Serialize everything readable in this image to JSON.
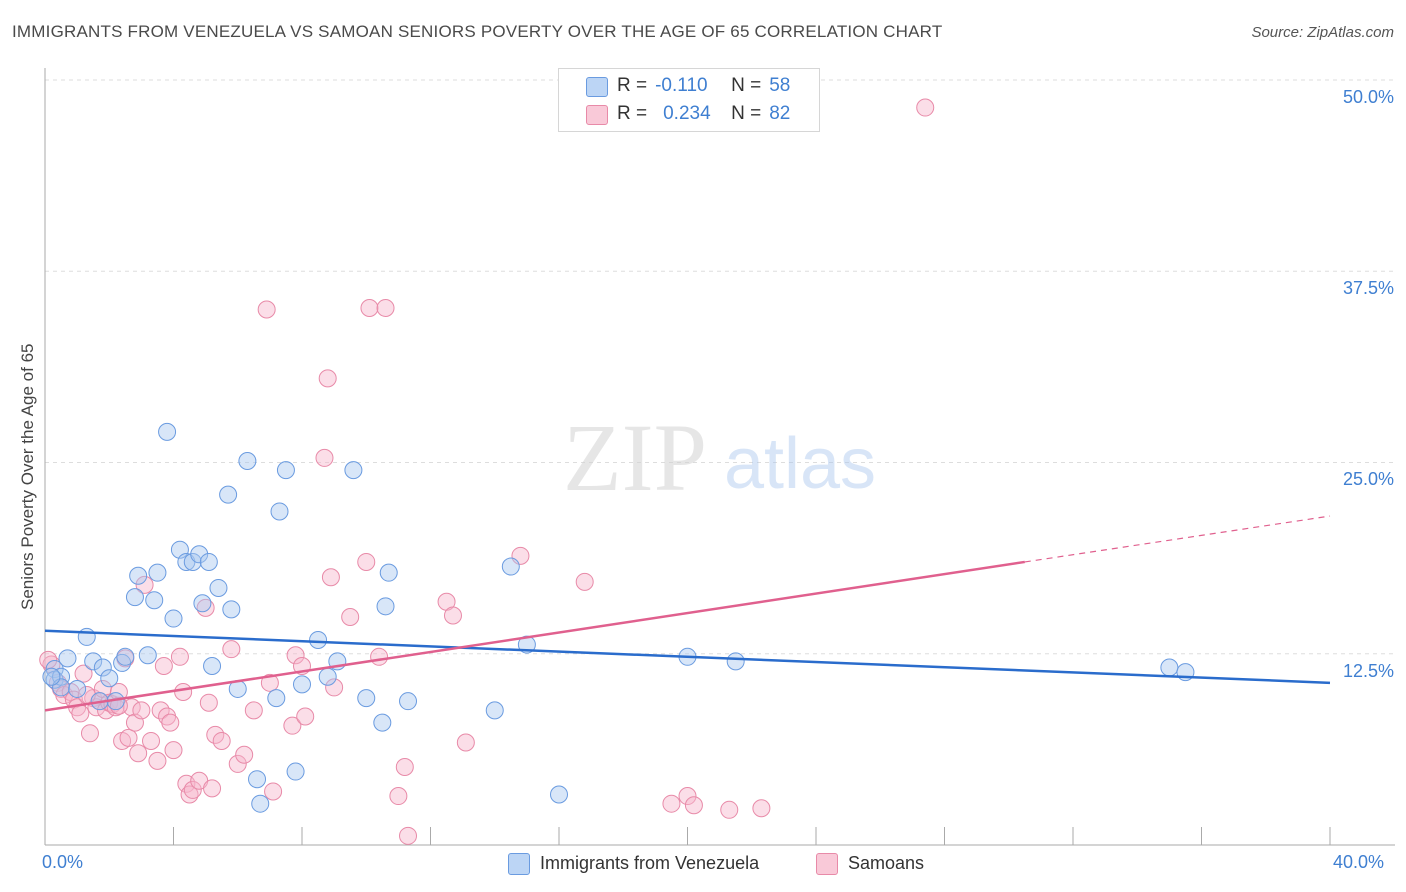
{
  "header": {
    "title": "IMMIGRANTS FROM VENEZUELA VS SAMOAN SENIORS POVERTY OVER THE AGE OF 65 CORRELATION CHART",
    "source": "Source: ZipAtlas.com"
  },
  "watermark": {
    "zip": "ZIP",
    "atlas": "atlas"
  },
  "legend": {
    "r_label": "R =",
    "n_label": "N =",
    "series": [
      {
        "r": "-0.110",
        "n": "58"
      },
      {
        "r": "0.234",
        "n": "82"
      }
    ]
  },
  "colors": {
    "blue_fill": "#a8c8f0",
    "blue_stroke": "#6a9be0",
    "blue_line": "#2a6ccc",
    "pink_fill": "#f7b6cb",
    "pink_stroke": "#e88aa8",
    "pink_line": "#e0608e",
    "tick_text": "#3f7fd1",
    "grid": "#dddddd"
  },
  "chart_data": {
    "type": "scatter",
    "title": "IMMIGRANTS FROM VENEZUELA VS SAMOAN SENIORS POVERTY OVER THE AGE OF 65 CORRELATION CHART",
    "xlabel": "",
    "ylabel": "Seniors Poverty Over the Age of 65",
    "xlim": [
      0,
      40
    ],
    "ylim": [
      0,
      50
    ],
    "x_tick_labels": [
      "0.0%",
      "40.0%"
    ],
    "y_ticks": [
      12.5,
      25.0,
      37.5,
      50.0
    ],
    "y_tick_labels": [
      "12.5%",
      "25.0%",
      "37.5%",
      "50.0%"
    ],
    "grid": true,
    "legend_position": "top-center",
    "series": [
      {
        "name": "Immigrants from Venezuela",
        "r": -0.11,
        "n": 58,
        "trend": {
          "x": [
            0,
            40
          ],
          "y": [
            14.0,
            10.6
          ]
        },
        "points": [
          [
            0.3,
            11.5
          ],
          [
            0.3,
            10.8
          ],
          [
            0.5,
            11.0
          ],
          [
            0.5,
            10.3
          ],
          [
            0.7,
            12.2
          ],
          [
            1.0,
            10.2
          ],
          [
            1.3,
            13.6
          ],
          [
            1.5,
            12.0
          ],
          [
            1.7,
            9.4
          ],
          [
            1.8,
            11.6
          ],
          [
            2.0,
            10.9
          ],
          [
            2.2,
            9.4
          ],
          [
            2.4,
            11.9
          ],
          [
            2.5,
            12.3
          ],
          [
            2.8,
            16.2
          ],
          [
            2.9,
            17.6
          ],
          [
            3.2,
            12.4
          ],
          [
            3.4,
            16.0
          ],
          [
            3.5,
            17.8
          ],
          [
            3.8,
            27.0
          ],
          [
            4.0,
            14.8
          ],
          [
            4.2,
            19.3
          ],
          [
            4.4,
            18.5
          ],
          [
            4.6,
            18.5
          ],
          [
            4.8,
            19.0
          ],
          [
            4.9,
            15.8
          ],
          [
            5.1,
            18.5
          ],
          [
            5.2,
            11.7
          ],
          [
            5.4,
            16.8
          ],
          [
            5.7,
            22.9
          ],
          [
            5.8,
            15.4
          ],
          [
            6.0,
            10.2
          ],
          [
            6.3,
            25.1
          ],
          [
            6.6,
            4.3
          ],
          [
            6.7,
            2.7
          ],
          [
            7.2,
            9.6
          ],
          [
            7.3,
            21.8
          ],
          [
            7.5,
            24.5
          ],
          [
            7.8,
            4.8
          ],
          [
            8.0,
            10.5
          ],
          [
            8.5,
            13.4
          ],
          [
            8.8,
            11.0
          ],
          [
            9.1,
            12.0
          ],
          [
            9.6,
            24.5
          ],
          [
            10.0,
            9.6
          ],
          [
            10.5,
            8.0
          ],
          [
            10.6,
            15.6
          ],
          [
            10.7,
            17.8
          ],
          [
            11.3,
            9.4
          ],
          [
            14.0,
            8.8
          ],
          [
            14.5,
            18.2
          ],
          [
            15.0,
            13.1
          ],
          [
            16.0,
            3.3
          ],
          [
            20.0,
            12.3
          ],
          [
            21.5,
            12.0
          ],
          [
            35.0,
            11.6
          ],
          [
            35.5,
            11.3
          ],
          [
            0.2,
            11.0
          ]
        ]
      },
      {
        "name": "Samoans",
        "r": 0.234,
        "n": 82,
        "trend": {
          "x": [
            0,
            30.5
          ],
          "y": [
            8.8,
            18.5
          ]
        },
        "trend_dashed": {
          "x": [
            30.5,
            40
          ],
          "y": [
            18.5,
            21.5
          ]
        },
        "points": [
          [
            0.2,
            11.8
          ],
          [
            0.4,
            10.6
          ],
          [
            0.5,
            10.2
          ],
          [
            0.6,
            9.8
          ],
          [
            0.8,
            10.0
          ],
          [
            0.9,
            9.5
          ],
          [
            1.0,
            9.0
          ],
          [
            1.1,
            8.6
          ],
          [
            1.2,
            11.2
          ],
          [
            1.4,
            7.3
          ],
          [
            1.5,
            9.6
          ],
          [
            1.6,
            9.0
          ],
          [
            1.7,
            9.4
          ],
          [
            1.8,
            10.2
          ],
          [
            1.9,
            8.8
          ],
          [
            2.0,
            9.3
          ],
          [
            2.1,
            9.2
          ],
          [
            2.2,
            9.0
          ],
          [
            2.3,
            10.0
          ],
          [
            2.4,
            6.8
          ],
          [
            2.5,
            12.2
          ],
          [
            2.6,
            7.0
          ],
          [
            2.7,
            9.0
          ],
          [
            2.8,
            8.0
          ],
          [
            2.9,
            6.0
          ],
          [
            3.0,
            8.8
          ],
          [
            3.1,
            17.0
          ],
          [
            3.3,
            6.8
          ],
          [
            3.5,
            5.5
          ],
          [
            3.6,
            8.8
          ],
          [
            3.7,
            11.7
          ],
          [
            3.8,
            8.4
          ],
          [
            3.9,
            8.0
          ],
          [
            4.0,
            6.2
          ],
          [
            4.2,
            12.3
          ],
          [
            4.3,
            10.0
          ],
          [
            4.4,
            4.0
          ],
          [
            4.5,
            3.3
          ],
          [
            4.6,
            3.6
          ],
          [
            4.8,
            4.2
          ],
          [
            5.0,
            15.5
          ],
          [
            5.1,
            9.3
          ],
          [
            5.2,
            3.7
          ],
          [
            5.3,
            7.2
          ],
          [
            5.5,
            6.8
          ],
          [
            5.8,
            12.8
          ],
          [
            6.0,
            5.3
          ],
          [
            6.2,
            5.9
          ],
          [
            6.5,
            8.8
          ],
          [
            6.9,
            35.0
          ],
          [
            7.0,
            10.6
          ],
          [
            7.1,
            3.5
          ],
          [
            7.7,
            7.8
          ],
          [
            7.8,
            12.4
          ],
          [
            8.0,
            11.7
          ],
          [
            8.1,
            8.4
          ],
          [
            8.7,
            25.3
          ],
          [
            8.8,
            30.5
          ],
          [
            8.9,
            17.5
          ],
          [
            9.0,
            10.3
          ],
          [
            9.5,
            14.9
          ],
          [
            10.0,
            18.5
          ],
          [
            10.1,
            35.1
          ],
          [
            10.4,
            12.3
          ],
          [
            10.6,
            35.1
          ],
          [
            11.0,
            3.2
          ],
          [
            11.2,
            5.1
          ],
          [
            11.3,
            0.6
          ],
          [
            12.5,
            15.9
          ],
          [
            12.7,
            15.0
          ],
          [
            13.1,
            6.7
          ],
          [
            14.8,
            18.9
          ],
          [
            16.8,
            17.2
          ],
          [
            19.5,
            2.7
          ],
          [
            20.0,
            3.2
          ],
          [
            20.2,
            2.6
          ],
          [
            21.3,
            2.3
          ],
          [
            22.3,
            2.4
          ],
          [
            27.4,
            48.2
          ],
          [
            0.1,
            12.1
          ],
          [
            1.3,
            9.8
          ],
          [
            2.3,
            9.1
          ]
        ]
      }
    ]
  },
  "bottom_legend": {
    "items": [
      "Immigrants from Venezuela",
      "Samoans"
    ]
  }
}
